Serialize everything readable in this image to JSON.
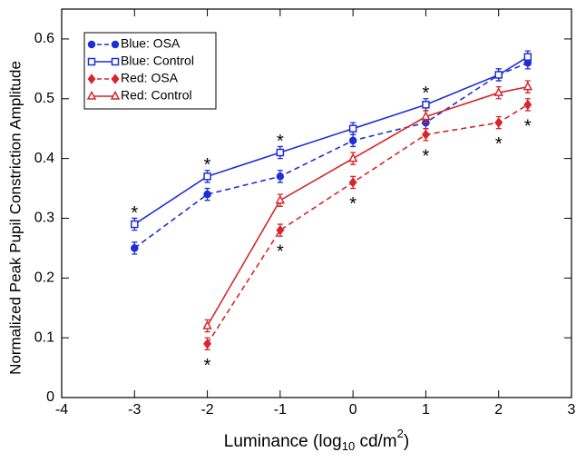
{
  "chart_data": {
    "type": "line",
    "xlabel": [
      "Luminance (log",
      "10",
      " cd/m",
      "2",
      ")"
    ],
    "ylabel": "Normalized Peak Pupil Constriction Amplitude",
    "xlim": [
      -4,
      3
    ],
    "xticks": [
      -4,
      -3,
      -2,
      -1,
      0,
      1,
      2,
      3
    ],
    "ylim": [
      0,
      0.65
    ],
    "yticks": [
      0,
      0.1,
      0.2,
      0.3,
      0.4,
      0.5,
      0.6
    ],
    "legend": "top-left",
    "series": [
      {
        "name": "Blue: OSA",
        "color": "#1f2fd6",
        "dashed": true,
        "marker": "circle",
        "filled": true,
        "x": [
          -3,
          -2,
          -1,
          0,
          1,
          2,
          2.4
        ],
        "values": [
          0.25,
          0.34,
          0.37,
          0.43,
          0.46,
          0.54,
          0.56
        ],
        "errors": [
          0.01,
          0.01,
          0.01,
          0.01,
          0.01,
          0.01,
          0.01
        ]
      },
      {
        "name": "Blue: Control",
        "color": "#1f2fd6",
        "dashed": false,
        "marker": "square",
        "filled": false,
        "x": [
          -3,
          -2,
          -1,
          0,
          1,
          2,
          2.4
        ],
        "values": [
          0.29,
          0.37,
          0.41,
          0.45,
          0.49,
          0.54,
          0.57
        ],
        "errors": [
          0.01,
          0.01,
          0.01,
          0.01,
          0.01,
          0.01,
          0.01
        ]
      },
      {
        "name": "Red: OSA",
        "color": "#d7262b",
        "dashed": true,
        "marker": "diamond",
        "filled": true,
        "x": [
          -2,
          -1,
          0,
          1,
          2,
          2.4
        ],
        "values": [
          0.09,
          0.28,
          0.36,
          0.44,
          0.46,
          0.49
        ],
        "errors": [
          0.01,
          0.01,
          0.01,
          0.01,
          0.01,
          0.01
        ]
      },
      {
        "name": "Red: Control",
        "color": "#d7262b",
        "dashed": false,
        "marker": "triangle",
        "filled": false,
        "x": [
          -2,
          -1,
          0,
          1,
          2,
          2.4
        ],
        "values": [
          0.12,
          0.33,
          0.4,
          0.47,
          0.51,
          0.52
        ],
        "errors": [
          0.01,
          0.01,
          0.01,
          0.01,
          0.01,
          0.01
        ]
      }
    ],
    "annotations": [
      {
        "text": "*",
        "x": -3,
        "y": 0.315
      },
      {
        "text": "*",
        "x": -2,
        "y": 0.395
      },
      {
        "text": "*",
        "x": -1,
        "y": 0.435
      },
      {
        "text": "*",
        "x": 1,
        "y": 0.515
      },
      {
        "text": "*",
        "x": -2,
        "y": 0.06
      },
      {
        "text": "*",
        "x": -1,
        "y": 0.25
      },
      {
        "text": "*",
        "x": 0,
        "y": 0.33
      },
      {
        "text": "*",
        "x": 1,
        "y": 0.41
      },
      {
        "text": "*",
        "x": 2,
        "y": 0.43
      },
      {
        "text": "*",
        "x": 2.4,
        "y": 0.46
      }
    ]
  }
}
